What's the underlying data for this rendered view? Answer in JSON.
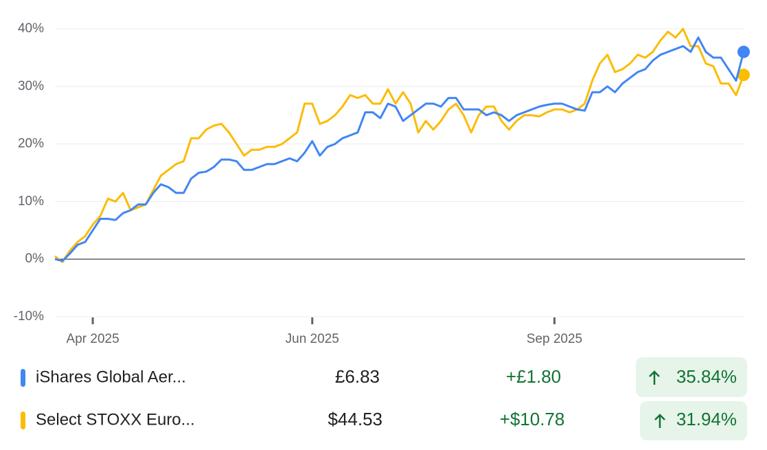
{
  "chart_data": {
    "type": "line",
    "categories": [
      null,
      null,
      null,
      null,
      null,
      "Apr 2025",
      null,
      null,
      null,
      null,
      null,
      null,
      null,
      null,
      null,
      null,
      null,
      null,
      null,
      null,
      null,
      null,
      null,
      null,
      null,
      null,
      null,
      null,
      null,
      null,
      null,
      null,
      null,
      null,
      "Jun 2025",
      null,
      null,
      null,
      null,
      null,
      null,
      null,
      null,
      null,
      null,
      null,
      null,
      null,
      null,
      null,
      null,
      null,
      null,
      null,
      null,
      null,
      null,
      null,
      null,
      null,
      null,
      null,
      null,
      null,
      null,
      null,
      "Sep 2025",
      null,
      null,
      null,
      null,
      null,
      null,
      null,
      null,
      null,
      null,
      null,
      null,
      null,
      null,
      null,
      null,
      null,
      null,
      null,
      null,
      null,
      null,
      null,
      null,
      null
    ],
    "series": [
      {
        "name": "iShares Global Aer...",
        "color": "#4285f4",
        "price": "£6.83",
        "change": "+£1.80",
        "change_pct": "35.84%",
        "values": [
          0,
          -0.3,
          1,
          2.5,
          3,
          5,
          7,
          7,
          6.8,
          8,
          8.5,
          9.5,
          9.5,
          11.5,
          13,
          12.5,
          11.5,
          11.5,
          14,
          15,
          15.2,
          16,
          17.3,
          17.3,
          17,
          15.5,
          15.5,
          16,
          16.5,
          16.5,
          17,
          17.5,
          17,
          18.5,
          20.5,
          18,
          19.5,
          20,
          21,
          21.5,
          22,
          25.5,
          25.5,
          24.5,
          27,
          26.5,
          24,
          25,
          26,
          27,
          27,
          26.5,
          28,
          28,
          26,
          26,
          26,
          25,
          25.5,
          25,
          24,
          25,
          25.5,
          26,
          26.5,
          26.8,
          27,
          27,
          26.5,
          26,
          25.8,
          29,
          29,
          30,
          29,
          30.5,
          31.5,
          32.5,
          33,
          34.5,
          35.5,
          36,
          36.5,
          37,
          36,
          38.5,
          36,
          35,
          35,
          33,
          31,
          36
        ]
      },
      {
        "name": "Select STOXX Euro...",
        "color": "#fbbc04",
        "price": "$44.53",
        "change": "+$10.78",
        "change_pct": "31.94%",
        "values": [
          0.5,
          -0.5,
          1.5,
          3,
          4,
          6,
          7.5,
          10.5,
          10,
          11.5,
          8.5,
          9,
          9.5,
          12,
          14.5,
          15.5,
          16.5,
          17,
          21,
          21,
          22.5,
          23.2,
          23.5,
          22,
          20,
          18,
          19,
          19,
          19.5,
          19.5,
          20,
          21,
          22,
          27,
          27,
          23.5,
          24,
          25,
          26.5,
          28.5,
          28,
          28.5,
          27,
          27,
          29.5,
          27,
          29,
          27,
          22,
          24,
          22.5,
          24,
          26,
          27,
          25,
          22,
          25,
          26.5,
          26.5,
          24,
          22.5,
          24,
          25,
          25,
          24.8,
          25.5,
          26,
          26,
          25.5,
          26,
          27,
          31,
          34,
          35.5,
          32.5,
          33,
          34,
          35.5,
          35,
          36,
          38,
          39.5,
          38.5,
          40,
          37,
          37,
          34,
          33.5,
          30.5,
          30.5,
          28.5,
          32
        ]
      }
    ],
    "ylim": [
      -10,
      40
    ],
    "yticks": [
      {
        "value": -10,
        "label": "-10%"
      },
      {
        "value": 0,
        "label": "0%"
      },
      {
        "value": 10,
        "label": "10%"
      },
      {
        "value": 20,
        "label": "20%"
      },
      {
        "value": 30,
        "label": "30%"
      },
      {
        "value": 40,
        "label": "40%"
      }
    ],
    "grid": true
  }
}
